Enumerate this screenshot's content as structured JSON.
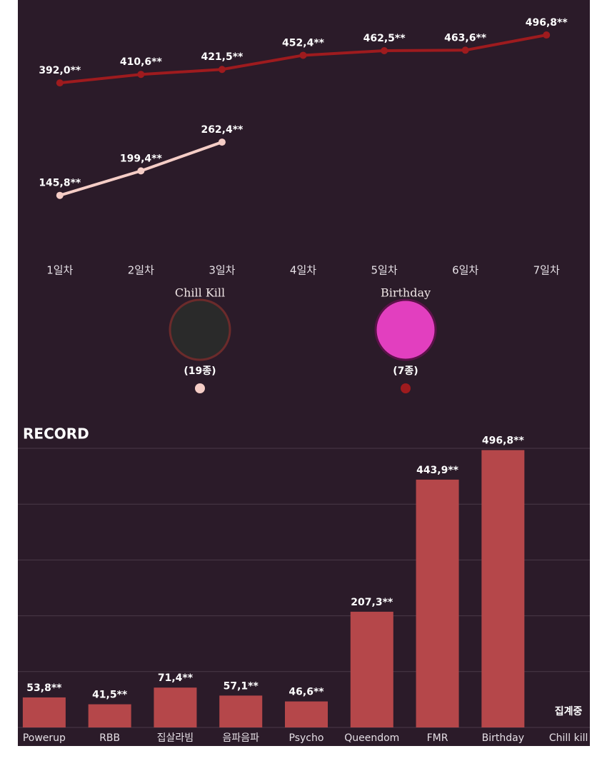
{
  "chart_data": [
    {
      "type": "line",
      "categories": [
        "1일차",
        "2일차",
        "3일차",
        "4일차",
        "5일차",
        "6일차",
        "7일차"
      ],
      "series": [
        {
          "name": "Birthday",
          "color": "#9e1b1e",
          "values": [
            392.0,
            410.6,
            421.5,
            452.4,
            462.5,
            463.6,
            496.8
          ],
          "value_labels": [
            "392,0**",
            "410,6**",
            "421,5**",
            "452,4**",
            "462,5**",
            "463,6**",
            "496,8**"
          ],
          "count_label": "(7종)"
        },
        {
          "name": "Chill Kill",
          "color": "#f5cdc6",
          "values": [
            145.8,
            199.4,
            262.4,
            null,
            null,
            null,
            null
          ],
          "value_labels": [
            "145,8**",
            "199,4**",
            "262,4**",
            null,
            null,
            null,
            null
          ],
          "count_label": "(19종)"
        }
      ],
      "ylim": [
        100,
        500
      ]
    },
    {
      "type": "bar",
      "title": "RECORD",
      "categories": [
        "Powerup",
        "RBB",
        "집살라빔",
        "음파음파",
        "Psycho",
        "Queendom",
        "FMR",
        "Birthday",
        "Chill kill"
      ],
      "values": [
        53.8,
        41.5,
        71.4,
        57.1,
        46.6,
        207.3,
        443.9,
        496.8,
        null
      ],
      "value_labels": [
        "53,8**",
        "41,5**",
        "71,4**",
        "57,1**",
        "46,6**",
        "207,3**",
        "443,9**",
        "496,8**",
        "집계중"
      ],
      "color": "#b5474a",
      "ylim": [
        0,
        500
      ],
      "yticks": [
        0,
        100,
        200,
        300,
        400,
        500
      ],
      "grid": true
    }
  ]
}
